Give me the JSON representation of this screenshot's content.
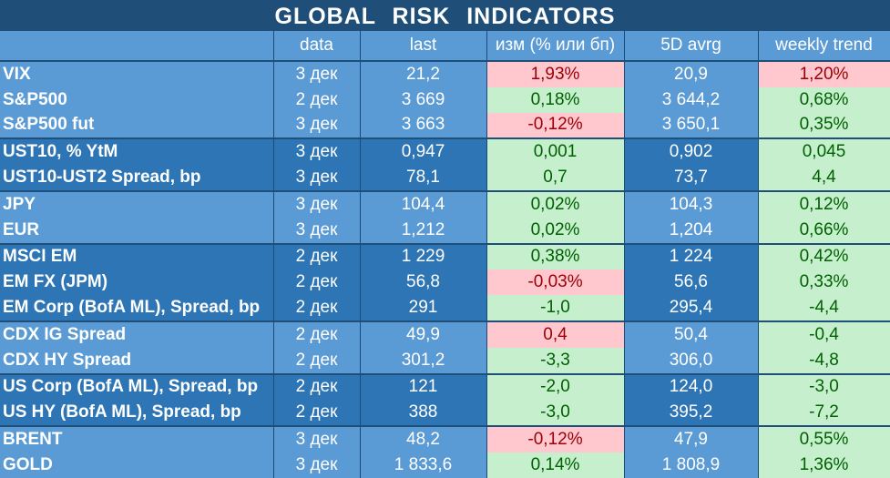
{
  "title": "GLOBAL RISK INDICATORS",
  "columns": [
    "",
    "data",
    "last",
    "изм (% или бп)",
    "5D avrg",
    "weekly trend"
  ],
  "rows": [
    {
      "name": "VIX",
      "date": "3 дек",
      "last": "21,2",
      "chg": "1,93%",
      "chg_style": "neg",
      "avg5d": "20,9",
      "weekly": "1,20%",
      "weekly_style": "neg",
      "shade": "lt",
      "gtop": false
    },
    {
      "name": "S&P500",
      "date": "2 дек",
      "last": "3 669",
      "chg": "0,18%",
      "chg_style": "pos",
      "avg5d": "3 644,2",
      "weekly": "0,68%",
      "weekly_style": "pos",
      "shade": "lt",
      "gtop": false
    },
    {
      "name": "S&P500 fut",
      "date": "3 дек",
      "last": "3 663",
      "chg": "-0,12%",
      "chg_style": "neg",
      "avg5d": "3 650,1",
      "weekly": "0,35%",
      "weekly_style": "pos",
      "shade": "lt",
      "gtop": false
    },
    {
      "name": "UST10, % YtM",
      "date": "3 дек",
      "last": "0,947",
      "chg": "0,001",
      "chg_style": "pos",
      "avg5d": "0,902",
      "weekly": "0,045",
      "weekly_style": "pos",
      "shade": "dk",
      "gtop": true
    },
    {
      "name": "UST10-UST2 Spread, bp",
      "date": "3 дек",
      "last": "78,1",
      "chg": "0,7",
      "chg_style": "pos",
      "avg5d": "73,7",
      "weekly": "4,4",
      "weekly_style": "pos",
      "shade": "dk",
      "gtop": false
    },
    {
      "name": "JPY",
      "date": "3 дек",
      "last": "104,4",
      "chg": "0,02%",
      "chg_style": "pos",
      "avg5d": "104,3",
      "weekly": "0,12%",
      "weekly_style": "pos",
      "shade": "lt",
      "gtop": true
    },
    {
      "name": "EUR",
      "date": "3 дек",
      "last": "1,212",
      "chg": "0,02%",
      "chg_style": "pos",
      "avg5d": "1,204",
      "weekly": "0,66%",
      "weekly_style": "pos",
      "shade": "lt",
      "gtop": false
    },
    {
      "name": "MSCI EM",
      "date": "2 дек",
      "last": "1 229",
      "chg": "0,38%",
      "chg_style": "pos",
      "avg5d": "1 224",
      "weekly": "0,42%",
      "weekly_style": "pos",
      "shade": "dk",
      "gtop": true
    },
    {
      "name": "EM FX (JPM)",
      "date": "2 дек",
      "last": "56,8",
      "chg": "-0,03%",
      "chg_style": "neg",
      "avg5d": "56,6",
      "weekly": "0,33%",
      "weekly_style": "pos",
      "shade": "dk",
      "gtop": false
    },
    {
      "name": "EM Corp (BofA ML), Spread, bp",
      "date": "2 дек",
      "last": "291",
      "chg": "-1,0",
      "chg_style": "pos",
      "avg5d": "295,4",
      "weekly": "-4,4",
      "weekly_style": "pos",
      "shade": "dk",
      "gtop": false
    },
    {
      "name": "CDX IG Spread",
      "date": "2 дек",
      "last": "49,9",
      "chg": "0,4",
      "chg_style": "neg",
      "avg5d": "50,4",
      "weekly": "-0,4",
      "weekly_style": "pos",
      "shade": "lt",
      "gtop": true
    },
    {
      "name": "CDX HY Spread",
      "date": "2 дек",
      "last": "301,2",
      "chg": "-3,3",
      "chg_style": "pos",
      "avg5d": "306,0",
      "weekly": "-4,8",
      "weekly_style": "pos",
      "shade": "lt",
      "gtop": false
    },
    {
      "name": "US Corp (BofA ML), Spread, bp",
      "date": "2 дек",
      "last": "121",
      "chg": "-2,0",
      "chg_style": "pos",
      "avg5d": "124,0",
      "weekly": "-3,0",
      "weekly_style": "pos",
      "shade": "dk",
      "gtop": true
    },
    {
      "name": "US HY (BofA ML), Spread, bp",
      "date": "2 дек",
      "last": "388",
      "chg": "-3,0",
      "chg_style": "pos",
      "avg5d": "395,2",
      "weekly": "-7,2",
      "weekly_style": "pos",
      "shade": "dk",
      "gtop": false
    },
    {
      "name": "BRENT",
      "date": "3 дек",
      "last": "48,2",
      "chg": "-0,12%",
      "chg_style": "neg",
      "avg5d": "47,9",
      "weekly": "0,55%",
      "weekly_style": "pos",
      "shade": "lt",
      "gtop": true
    },
    {
      "name": "GOLD",
      "date": "3 дек",
      "last": "1 833,6",
      "chg": "0,14%",
      "chg_style": "pos",
      "avg5d": "1 808,9",
      "weekly": "1,36%",
      "weekly_style": "pos",
      "shade": "lt",
      "gtop": false
    }
  ]
}
